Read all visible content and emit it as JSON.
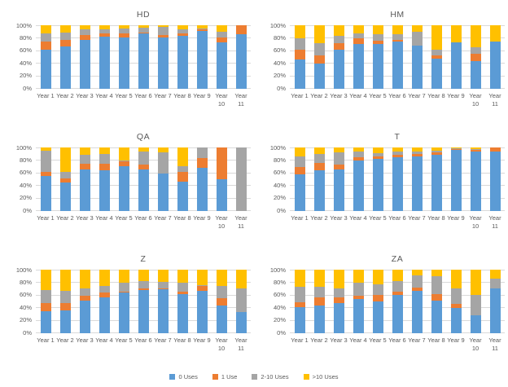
{
  "page": {
    "background": "#ffffff"
  },
  "axis": {
    "y_ticks": [
      "0%",
      "20%",
      "40%",
      "60%",
      "80%",
      "100%"
    ],
    "categories": [
      "Year 1",
      "Year 2",
      "Year 3",
      "Year 4",
      "Year 5",
      "Year 6",
      "Year 7",
      "Year 8",
      "Year 9",
      "Year 10",
      "Year 11"
    ]
  },
  "legend": {
    "position": "bottom-center",
    "items": [
      {
        "label": "0 Uses",
        "color": "#5B9BD5"
      },
      {
        "label": "1 Use",
        "color": "#ED7D31"
      },
      {
        "label": "2-10 Uses",
        "color": "#A5A5A5"
      },
      {
        "label": ">10 Uses",
        "color": "#FFC000"
      }
    ]
  },
  "chart_data": [
    {
      "type": "bar",
      "stacked": "percent",
      "title": "HD",
      "ylim": [
        0,
        100
      ],
      "grid": true,
      "categories": [
        "Year 1",
        "Year 2",
        "Year 3",
        "Year 4",
        "Year 5",
        "Year 6",
        "Year 7",
        "Year 8",
        "Year 9",
        "Year 10",
        "Year 11"
      ],
      "series": [
        {
          "name": "0 Uses",
          "color": "#5B9BD5",
          "values": [
            61,
            67,
            77,
            82,
            81,
            87,
            81,
            83,
            91,
            73,
            86
          ]
        },
        {
          "name": "1 Use",
          "color": "#ED7D31",
          "values": [
            13,
            10,
            8,
            5,
            6,
            2,
            4,
            4,
            2,
            8,
            14
          ]
        },
        {
          "name": "2-10 Uses",
          "color": "#A5A5A5",
          "values": [
            13,
            11,
            8,
            6,
            8,
            7,
            12,
            7,
            2,
            9,
            0
          ]
        },
        {
          "name": ">10 Uses",
          "color": "#FFC000",
          "values": [
            13,
            12,
            7,
            7,
            5,
            4,
            3,
            6,
            5,
            10,
            0
          ]
        }
      ]
    },
    {
      "type": "bar",
      "stacked": "percent",
      "title": "HM",
      "ylim": [
        0,
        100
      ],
      "grid": true,
      "categories": [
        "Year 1",
        "Year 2",
        "Year 3",
        "Year 4",
        "Year 5",
        "Year 6",
        "Year 7",
        "Year 8",
        "Year 9",
        "Year 10",
        "Year 11"
      ],
      "series": [
        {
          "name": "0 Uses",
          "color": "#5B9BD5",
          "values": [
            46,
            40,
            61,
            70,
            71,
            74,
            68,
            47,
            73,
            44,
            75
          ]
        },
        {
          "name": "1 Use",
          "color": "#ED7D31",
          "values": [
            16,
            13,
            11,
            10,
            5,
            3,
            0,
            5,
            0,
            11,
            0
          ]
        },
        {
          "name": "2-10 Uses",
          "color": "#A5A5A5",
          "values": [
            18,
            19,
            11,
            7,
            10,
            9,
            22,
            10,
            0,
            11,
            0
          ]
        },
        {
          "name": ">10 Uses",
          "color": "#FFC000",
          "values": [
            20,
            28,
            17,
            13,
            14,
            14,
            10,
            38,
            27,
            34,
            25
          ]
        }
      ]
    },
    {
      "type": "bar",
      "stacked": "percent",
      "title": "QA",
      "ylim": [
        0,
        100
      ],
      "grid": true,
      "categories": [
        "Year 1",
        "Year 2",
        "Year 3",
        "Year 4",
        "Year 5",
        "Year 6",
        "Year 7",
        "Year 8",
        "Year 9",
        "Year 10",
        "Year 11"
      ],
      "series": [
        {
          "name": "0 Uses",
          "color": "#5B9BD5",
          "values": [
            55,
            45,
            66,
            64,
            70,
            65,
            59,
            46,
            68,
            50,
            0
          ]
        },
        {
          "name": "1 Use",
          "color": "#ED7D31",
          "values": [
            6,
            6,
            9,
            10,
            8,
            8,
            0,
            16,
            16,
            50,
            0
          ]
        },
        {
          "name": "2-10 Uses",
          "color": "#A5A5A5",
          "values": [
            34,
            10,
            14,
            16,
            2,
            21,
            33,
            8,
            16,
            0,
            100
          ]
        },
        {
          "name": ">10 Uses",
          "color": "#FFC000",
          "values": [
            5,
            39,
            11,
            10,
            20,
            6,
            8,
            30,
            0,
            0,
            0
          ]
        }
      ]
    },
    {
      "type": "bar",
      "stacked": "percent",
      "title": "T",
      "ylim": [
        0,
        100
      ],
      "grid": true,
      "categories": [
        "Year 1",
        "Year 2",
        "Year 3",
        "Year 4",
        "Year 5",
        "Year 6",
        "Year 7",
        "Year 8",
        "Year 9",
        "Year 10",
        "Year 11"
      ],
      "series": [
        {
          "name": "0 Uses",
          "color": "#5B9BD5",
          "values": [
            58,
            64,
            66,
            80,
            82,
            84,
            86,
            89,
            96,
            94,
            94
          ]
        },
        {
          "name": "1 Use",
          "color": "#ED7D31",
          "values": [
            11,
            12,
            7,
            5,
            4,
            5,
            4,
            3,
            2,
            2,
            6
          ]
        },
        {
          "name": "2-10 Uses",
          "color": "#A5A5A5",
          "values": [
            17,
            14,
            19,
            8,
            5,
            5,
            4,
            3,
            1,
            1,
            0
          ]
        },
        {
          "name": ">10 Uses",
          "color": "#FFC000",
          "values": [
            14,
            10,
            8,
            7,
            9,
            6,
            6,
            5,
            1,
            3,
            0
          ]
        }
      ]
    },
    {
      "type": "bar",
      "stacked": "percent",
      "title": "Z",
      "ylim": [
        0,
        100
      ],
      "grid": true,
      "categories": [
        "Year 1",
        "Year 2",
        "Year 3",
        "Year 4",
        "Year 5",
        "Year 6",
        "Year 7",
        "Year 8",
        "Year 9",
        "Year 10",
        "Year 11"
      ],
      "series": [
        {
          "name": "0 Uses",
          "color": "#5B9BD5",
          "values": [
            35,
            36,
            51,
            57,
            64,
            68,
            69,
            62,
            67,
            43,
            33
          ]
        },
        {
          "name": "1 Use",
          "color": "#ED7D31",
          "values": [
            13,
            11,
            8,
            7,
            2,
            2,
            2,
            3,
            7,
            12,
            0
          ]
        },
        {
          "name": "2-10 Uses",
          "color": "#A5A5A5",
          "values": [
            20,
            20,
            12,
            10,
            13,
            12,
            10,
            15,
            2,
            20,
            37
          ]
        },
        {
          "name": ">10 Uses",
          "color": "#FFC000",
          "values": [
            32,
            33,
            29,
            26,
            21,
            18,
            19,
            20,
            24,
            25,
            30
          ]
        }
      ]
    },
    {
      "type": "bar",
      "stacked": "percent",
      "title": "ZA",
      "ylim": [
        0,
        100
      ],
      "grid": true,
      "categories": [
        "Year 1",
        "Year 2",
        "Year 3",
        "Year 4",
        "Year 5",
        "Year 6",
        "Year 7",
        "Year 8",
        "Year 9",
        "Year 10",
        "Year 11"
      ],
      "series": [
        {
          "name": "0 Uses",
          "color": "#5B9BD5",
          "values": [
            41,
            43,
            47,
            54,
            50,
            60,
            67,
            51,
            40,
            28,
            70
          ]
        },
        {
          "name": "1 Use",
          "color": "#ED7D31",
          "values": [
            8,
            14,
            9,
            5,
            10,
            5,
            5,
            11,
            6,
            0,
            0
          ]
        },
        {
          "name": "2-10 Uses",
          "color": "#A5A5A5",
          "values": [
            24,
            16,
            14,
            21,
            17,
            17,
            19,
            28,
            24,
            32,
            16
          ]
        },
        {
          "name": ">10 Uses",
          "color": "#FFC000",
          "values": [
            27,
            27,
            30,
            20,
            23,
            18,
            9,
            10,
            30,
            40,
            14
          ]
        }
      ]
    }
  ]
}
